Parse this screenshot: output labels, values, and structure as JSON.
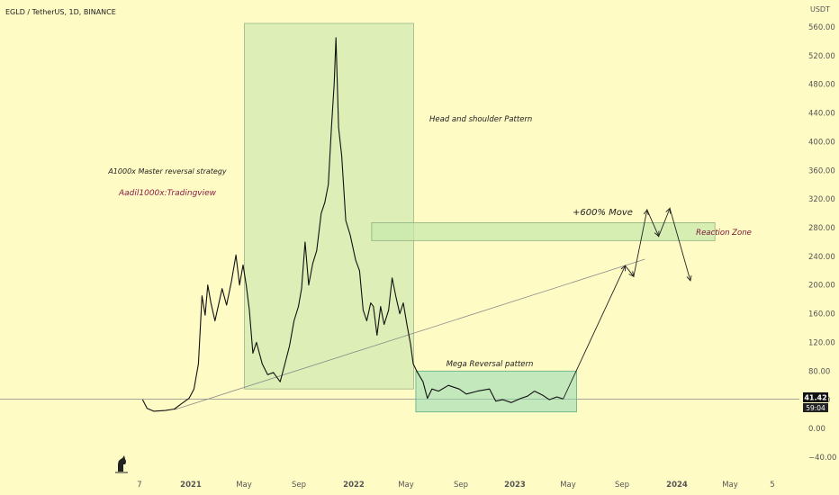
{
  "header": {
    "title": "EGLD / TetherUS, 1D, BINANCE",
    "currency": "USDT"
  },
  "annotations": {
    "strategy": "A1000x Master reversal strategy",
    "author": "Aadil1000x:Tradingview",
    "head_shoulder": "Head and shoulder Pattern",
    "move": "+600% Move",
    "reaction_zone": "Reaction Zone",
    "mega_reversal": "Mega Reversal pattern"
  },
  "price_badge": {
    "price": "41.42",
    "countdown": "59:04"
  },
  "chart_data": {
    "type": "line",
    "title": "EGLD / TetherUS, 1D, BINANCE",
    "y_ticks": [
      "560.00",
      "520.00",
      "480.00",
      "440.00",
      "400.00",
      "360.00",
      "320.00",
      "280.00",
      "240.00",
      "200.00",
      "160.00",
      "120.00",
      "80.00",
      "40.00",
      "0.00",
      "−40.00"
    ],
    "x_ticks": [
      "7",
      "2021",
      "May",
      "Sep",
      "2022",
      "May",
      "Sep",
      "2023",
      "May",
      "Sep",
      "2024",
      "May",
      "5"
    ],
    "ylim": [
      -40,
      560
    ],
    "price_points": [
      [
        "2020-09-15",
        40
      ],
      [
        "2020-09-25",
        28
      ],
      [
        "2020-10-10",
        24
      ],
      [
        "2020-11-05",
        25
      ],
      [
        "2020-11-25",
        27
      ],
      [
        "2020-12-10",
        34
      ],
      [
        "2020-12-28",
        42
      ],
      [
        "2021-01-08",
        55
      ],
      [
        "2021-01-18",
        90
      ],
      [
        "2021-01-26",
        185
      ],
      [
        "2021-02-02",
        158
      ],
      [
        "2021-02-08",
        200
      ],
      [
        "2021-02-15",
        175
      ],
      [
        "2021-02-24",
        150
      ],
      [
        "2021-03-05",
        175
      ],
      [
        "2021-03-12",
        195
      ],
      [
        "2021-03-22",
        172
      ],
      [
        "2021-04-02",
        205
      ],
      [
        "2021-04-12",
        242
      ],
      [
        "2021-04-20",
        200
      ],
      [
        "2021-04-28",
        228
      ],
      [
        "2021-05-05",
        200
      ],
      [
        "2021-05-12",
        165
      ],
      [
        "2021-05-20",
        105
      ],
      [
        "2021-05-28",
        120
      ],
      [
        "2021-06-10",
        90
      ],
      [
        "2021-06-22",
        75
      ],
      [
        "2021-07-05",
        78
      ],
      [
        "2021-07-20",
        65
      ],
      [
        "2021-07-30",
        88
      ],
      [
        "2021-08-10",
        115
      ],
      [
        "2021-08-20",
        150
      ],
      [
        "2021-08-30",
        170
      ],
      [
        "2021-09-06",
        195
      ],
      [
        "2021-09-14",
        260
      ],
      [
        "2021-09-22",
        200
      ],
      [
        "2021-10-01",
        230
      ],
      [
        "2021-10-10",
        248
      ],
      [
        "2021-10-20",
        300
      ],
      [
        "2021-10-28",
        315
      ],
      [
        "2021-11-05",
        340
      ],
      [
        "2021-11-12",
        420
      ],
      [
        "2021-11-18",
        480
      ],
      [
        "2021-11-22",
        545
      ],
      [
        "2021-11-28",
        420
      ],
      [
        "2021-12-05",
        380
      ],
      [
        "2021-12-14",
        290
      ],
      [
        "2021-12-24",
        270
      ],
      [
        "2022-01-05",
        235
      ],
      [
        "2022-01-14",
        220
      ],
      [
        "2022-01-22",
        165
      ],
      [
        "2022-01-30",
        150
      ],
      [
        "2022-02-08",
        175
      ],
      [
        "2022-02-14",
        170
      ],
      [
        "2022-02-22",
        130
      ],
      [
        "2022-03-02",
        170
      ],
      [
        "2022-03-10",
        145
      ],
      [
        "2022-03-20",
        165
      ],
      [
        "2022-03-28",
        210
      ],
      [
        "2022-04-05",
        185
      ],
      [
        "2022-04-14",
        160
      ],
      [
        "2022-04-22",
        175
      ],
      [
        "2022-04-30",
        145
      ],
      [
        "2022-05-08",
        118
      ],
      [
        "2022-05-14",
        90
      ],
      [
        "2022-05-22",
        80
      ],
      [
        "2022-06-05",
        65
      ],
      [
        "2022-06-15",
        42
      ],
      [
        "2022-06-25",
        55
      ],
      [
        "2022-07-10",
        52
      ],
      [
        "2022-08-01",
        60
      ],
      [
        "2022-08-25",
        55
      ],
      [
        "2022-09-10",
        48
      ],
      [
        "2022-10-05",
        52
      ],
      [
        "2022-11-01",
        55
      ],
      [
        "2022-11-15",
        38
      ],
      [
        "2022-12-01",
        40
      ],
      [
        "2022-12-20",
        36
      ],
      [
        "2023-01-10",
        42
      ],
      [
        "2023-01-25",
        45
      ],
      [
        "2023-02-10",
        52
      ],
      [
        "2023-03-01",
        46
      ],
      [
        "2023-03-15",
        40
      ],
      [
        "2023-04-01",
        44
      ],
      [
        "2023-04-15",
        41
      ]
    ],
    "projection": [
      [
        "2023-04-15",
        41
      ],
      [
        "2023-09-01",
        227
      ],
      [
        "2023-09-20",
        212
      ],
      [
        "2023-10-20",
        305
      ],
      [
        "2023-11-15",
        268
      ],
      [
        "2023-12-10",
        307
      ],
      [
        "2024-01-25",
        206
      ]
    ],
    "trendline": [
      [
        "2020-11-25",
        26
      ],
      [
        "2023-10-15",
        236
      ]
    ],
    "support_price": 41,
    "last_price": 41.42
  },
  "colors": {
    "background": "#fffbc4",
    "box_green": "#c6e8ad",
    "box_teal": "#8fd9b6",
    "price_line": "#111111",
    "author_text": "#8b1c48",
    "reaction_text": "#7a1030"
  }
}
